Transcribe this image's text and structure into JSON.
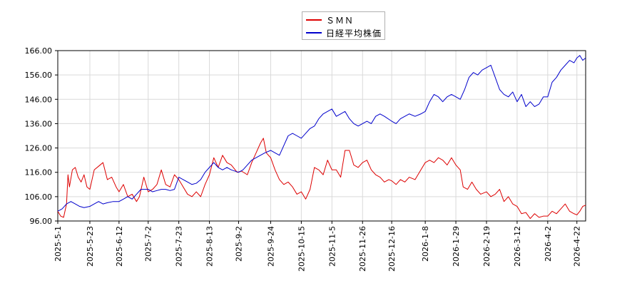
{
  "chart_data": {
    "type": "line",
    "title": "",
    "xlabel": "",
    "ylabel": "",
    "ylim": [
      96,
      166
    ],
    "yticks": [
      "96.00",
      "106.00",
      "116.00",
      "126.00",
      "136.00",
      "146.00",
      "156.00",
      "166.00"
    ],
    "xticks": [
      "2025-5-1",
      "2025-5-23",
      "2025-6-12",
      "2025-7-2",
      "2025-7-23",
      "2025-8-13",
      "2025-9-2",
      "2025-9-24",
      "2025-10-15",
      "2025-11-5",
      "2025-11-26",
      "2025-12-16",
      "2026-1-8",
      "2026-1-29",
      "2026-2-19",
      "2026-3-12",
      "2026-4-2",
      "2026-4-22"
    ],
    "grid": true,
    "legend_position": "top-center",
    "series": [
      {
        "name": "ＳＭＮ",
        "color": "#dd0000",
        "values": [
          [
            "2025-5-1",
            100.0
          ],
          [
            "2025-5-3",
            98.0
          ],
          [
            "2025-5-5",
            97.5
          ],
          [
            "2025-5-7",
            103.0
          ],
          [
            "2025-5-8",
            115.0
          ],
          [
            "2025-5-9",
            110.0
          ],
          [
            "2025-5-11",
            117.0
          ],
          [
            "2025-5-13",
            118.0
          ],
          [
            "2025-5-15",
            114.0
          ],
          [
            "2025-5-17",
            112.0
          ],
          [
            "2025-5-19",
            115.0
          ],
          [
            "2025-5-21",
            110.0
          ],
          [
            "2025-5-23",
            109.0
          ],
          [
            "2025-5-26",
            117.0
          ],
          [
            "2025-5-29",
            118.5
          ],
          [
            "2025-6-1",
            120.0
          ],
          [
            "2025-6-4",
            113.0
          ],
          [
            "2025-6-7",
            114.0
          ],
          [
            "2025-6-10",
            110.0
          ],
          [
            "2025-6-12",
            108.0
          ],
          [
            "2025-6-15",
            111.0
          ],
          [
            "2025-6-18",
            106.0
          ],
          [
            "2025-6-21",
            107.0
          ],
          [
            "2025-6-24",
            104.0
          ],
          [
            "2025-6-26",
            106.0
          ],
          [
            "2025-6-29",
            114.0
          ],
          [
            "2025-7-2",
            108.0
          ],
          [
            "2025-7-5",
            109.0
          ],
          [
            "2025-7-8",
            111.0
          ],
          [
            "2025-7-11",
            117.0
          ],
          [
            "2025-7-14",
            111.0
          ],
          [
            "2025-7-17",
            110.0
          ],
          [
            "2025-7-20",
            115.0
          ],
          [
            "2025-7-23",
            113.0
          ],
          [
            "2025-7-26",
            110.0
          ],
          [
            "2025-7-29",
            107.0
          ],
          [
            "2025-8-1",
            106.0
          ],
          [
            "2025-8-4",
            108.0
          ],
          [
            "2025-8-7",
            106.0
          ],
          [
            "2025-8-10",
            111.0
          ],
          [
            "2025-8-13",
            115.0
          ],
          [
            "2025-8-16",
            122.0
          ],
          [
            "2025-8-19",
            118.0
          ],
          [
            "2025-8-22",
            123.0
          ],
          [
            "2025-8-25",
            120.0
          ],
          [
            "2025-8-28",
            119.0
          ],
          [
            "2025-9-1",
            116.0
          ],
          [
            "2025-9-4",
            116.5
          ],
          [
            "2025-9-8",
            115.0
          ],
          [
            "2025-9-11",
            120.0
          ],
          [
            "2025-9-14",
            124.0
          ],
          [
            "2025-9-17",
            128.0
          ],
          [
            "2025-9-19",
            130.0
          ],
          [
            "2025-9-21",
            124.0
          ],
          [
            "2025-9-24",
            122.0
          ],
          [
            "2025-9-27",
            117.0
          ],
          [
            "2025-9-30",
            113.0
          ],
          [
            "2025-10-3",
            111.0
          ],
          [
            "2025-10-6",
            112.0
          ],
          [
            "2025-10-9",
            110.0
          ],
          [
            "2025-10-12",
            107.0
          ],
          [
            "2025-10-15",
            108.0
          ],
          [
            "2025-10-18",
            105.0
          ],
          [
            "2025-10-21",
            109.0
          ],
          [
            "2025-10-24",
            118.0
          ],
          [
            "2025-10-27",
            117.0
          ],
          [
            "2025-10-30",
            115.0
          ],
          [
            "2025-11-2",
            121.0
          ],
          [
            "2025-11-5",
            117.0
          ],
          [
            "2025-11-8",
            117.0
          ],
          [
            "2025-11-11",
            114.0
          ],
          [
            "2025-11-14",
            125.0
          ],
          [
            "2025-11-17",
            125.0
          ],
          [
            "2025-11-20",
            119.0
          ],
          [
            "2025-11-23",
            118.0
          ],
          [
            "2025-11-26",
            120.0
          ],
          [
            "2025-11-29",
            121.0
          ],
          [
            "2025-12-2",
            117.0
          ],
          [
            "2025-12-5",
            115.0
          ],
          [
            "2025-12-8",
            114.0
          ],
          [
            "2025-12-11",
            112.0
          ],
          [
            "2025-12-14",
            113.0
          ],
          [
            "2025-12-16",
            112.5
          ],
          [
            "2025-12-19",
            111.0
          ],
          [
            "2025-12-22",
            113.0
          ],
          [
            "2025-12-25",
            112.0
          ],
          [
            "2025-12-28",
            114.0
          ],
          [
            "2026-1-1",
            113.0
          ],
          [
            "2026-1-5",
            117.0
          ],
          [
            "2026-1-8",
            120.0
          ],
          [
            "2026-1-11",
            121.0
          ],
          [
            "2026-1-14",
            120.0
          ],
          [
            "2026-1-17",
            122.0
          ],
          [
            "2026-1-20",
            121.0
          ],
          [
            "2026-1-23",
            119.0
          ],
          [
            "2026-1-26",
            122.0
          ],
          [
            "2026-1-29",
            119.0
          ],
          [
            "2026-2-1",
            117.0
          ],
          [
            "2026-2-3",
            110.0
          ],
          [
            "2026-2-6",
            109.0
          ],
          [
            "2026-2-9",
            112.0
          ],
          [
            "2026-2-12",
            109.0
          ],
          [
            "2026-2-15",
            107.0
          ],
          [
            "2026-2-19",
            108.0
          ],
          [
            "2026-2-22",
            106.0
          ],
          [
            "2026-2-25",
            107.0
          ],
          [
            "2026-2-28",
            109.0
          ],
          [
            "2026-3-3",
            104.0
          ],
          [
            "2026-3-6",
            106.0
          ],
          [
            "2026-3-9",
            103.0
          ],
          [
            "2026-3-12",
            102.0
          ],
          [
            "2026-3-15",
            99.0
          ],
          [
            "2026-3-18",
            99.5
          ],
          [
            "2026-3-21",
            97.0
          ],
          [
            "2026-3-24",
            99.0
          ],
          [
            "2026-3-27",
            97.5
          ],
          [
            "2026-3-30",
            98.0
          ],
          [
            "2026-4-2",
            98.0
          ],
          [
            "2026-4-5",
            100.0
          ],
          [
            "2026-4-8",
            99.0
          ],
          [
            "2026-4-11",
            101.0
          ],
          [
            "2026-4-14",
            103.0
          ],
          [
            "2026-4-17",
            100.0
          ],
          [
            "2026-4-20",
            99.0
          ],
          [
            "2026-4-22",
            98.5
          ],
          [
            "2026-4-24",
            100.0
          ],
          [
            "2026-4-26",
            102.0
          ],
          [
            "2026-4-28",
            102.5
          ]
        ]
      },
      {
        "name": "日経平均株価",
        "color": "#0000cc",
        "values": [
          [
            "2025-5-1",
            100.0
          ],
          [
            "2025-5-4",
            101.0
          ],
          [
            "2025-5-7",
            103.0
          ],
          [
            "2025-5-10",
            104.0
          ],
          [
            "2025-5-13",
            103.0
          ],
          [
            "2025-5-16",
            102.0
          ],
          [
            "2025-5-19",
            101.5
          ],
          [
            "2025-5-23",
            102.0
          ],
          [
            "2025-5-26",
            103.0
          ],
          [
            "2025-5-29",
            104.0
          ],
          [
            "2025-6-1",
            103.0
          ],
          [
            "2025-6-4",
            103.5
          ],
          [
            "2025-6-8",
            104.0
          ],
          [
            "2025-6-12",
            104.0
          ],
          [
            "2025-6-15",
            105.0
          ],
          [
            "2025-6-18",
            106.0
          ],
          [
            "2025-6-21",
            105.0
          ],
          [
            "2025-6-24",
            107.0
          ],
          [
            "2025-6-27",
            109.0
          ],
          [
            "2025-7-2",
            109.0
          ],
          [
            "2025-7-5",
            108.0
          ],
          [
            "2025-7-8",
            108.5
          ],
          [
            "2025-7-11",
            109.0
          ],
          [
            "2025-7-14",
            109.0
          ],
          [
            "2025-7-17",
            108.5
          ],
          [
            "2025-7-20",
            109.0
          ],
          [
            "2025-7-23",
            114.0
          ],
          [
            "2025-7-26",
            113.0
          ],
          [
            "2025-7-29",
            112.0
          ],
          [
            "2025-8-1",
            111.0
          ],
          [
            "2025-8-4",
            111.5
          ],
          [
            "2025-8-7",
            113.0
          ],
          [
            "2025-8-10",
            116.0
          ],
          [
            "2025-8-13",
            118.0
          ],
          [
            "2025-8-16",
            120.0
          ],
          [
            "2025-8-19",
            118.0
          ],
          [
            "2025-8-22",
            117.0
          ],
          [
            "2025-8-25",
            118.0
          ],
          [
            "2025-8-28",
            117.0
          ],
          [
            "2025-9-2",
            116.0
          ],
          [
            "2025-9-5",
            117.0
          ],
          [
            "2025-9-8",
            119.0
          ],
          [
            "2025-9-11",
            121.0
          ],
          [
            "2025-9-14",
            122.0
          ],
          [
            "2025-9-17",
            123.0
          ],
          [
            "2025-9-20",
            124.0
          ],
          [
            "2025-9-24",
            125.0
          ],
          [
            "2025-9-27",
            124.0
          ],
          [
            "2025-9-30",
            123.0
          ],
          [
            "2025-10-3",
            127.0
          ],
          [
            "2025-10-6",
            131.0
          ],
          [
            "2025-10-9",
            132.0
          ],
          [
            "2025-10-12",
            131.0
          ],
          [
            "2025-10-15",
            130.0
          ],
          [
            "2025-10-18",
            132.0
          ],
          [
            "2025-10-21",
            134.0
          ],
          [
            "2025-10-24",
            135.0
          ],
          [
            "2025-10-27",
            138.0
          ],
          [
            "2025-10-30",
            140.0
          ],
          [
            "2025-11-2",
            141.0
          ],
          [
            "2025-11-5",
            142.0
          ],
          [
            "2025-11-8",
            139.0
          ],
          [
            "2025-11-11",
            140.0
          ],
          [
            "2025-11-14",
            141.0
          ],
          [
            "2025-11-17",
            138.0
          ],
          [
            "2025-11-20",
            136.0
          ],
          [
            "2025-11-23",
            135.0
          ],
          [
            "2025-11-26",
            136.0
          ],
          [
            "2025-11-29",
            137.0
          ],
          [
            "2025-12-2",
            136.0
          ],
          [
            "2025-12-5",
            139.0
          ],
          [
            "2025-12-8",
            140.0
          ],
          [
            "2025-12-11",
            139.0
          ],
          [
            "2025-12-16",
            137.0
          ],
          [
            "2025-12-19",
            136.0
          ],
          [
            "2025-12-22",
            138.0
          ],
          [
            "2025-12-25",
            139.0
          ],
          [
            "2025-12-28",
            140.0
          ],
          [
            "2026-1-1",
            139.0
          ],
          [
            "2026-1-5",
            140.0
          ],
          [
            "2026-1-8",
            141.0
          ],
          [
            "2026-1-11",
            145.0
          ],
          [
            "2026-1-14",
            148.0
          ],
          [
            "2026-1-17",
            147.0
          ],
          [
            "2026-1-20",
            145.0
          ],
          [
            "2026-1-23",
            147.0
          ],
          [
            "2026-1-26",
            148.0
          ],
          [
            "2026-1-29",
            147.0
          ],
          [
            "2026-2-1",
            146.0
          ],
          [
            "2026-2-4",
            150.0
          ],
          [
            "2026-2-7",
            155.0
          ],
          [
            "2026-2-10",
            157.0
          ],
          [
            "2026-2-13",
            156.0
          ],
          [
            "2026-2-16",
            158.0
          ],
          [
            "2026-2-19",
            159.0
          ],
          [
            "2026-2-22",
            160.0
          ],
          [
            "2026-2-25",
            155.0
          ],
          [
            "2026-2-28",
            150.0
          ],
          [
            "2026-3-3",
            148.0
          ],
          [
            "2026-3-6",
            147.0
          ],
          [
            "2026-3-9",
            149.0
          ],
          [
            "2026-3-12",
            145.0
          ],
          [
            "2026-3-15",
            148.0
          ],
          [
            "2026-3-18",
            143.0
          ],
          [
            "2026-3-21",
            145.0
          ],
          [
            "2026-3-24",
            143.0
          ],
          [
            "2026-3-27",
            144.0
          ],
          [
            "2026-3-30",
            147.0
          ],
          [
            "2026-4-2",
            147.0
          ],
          [
            "2026-4-5",
            153.0
          ],
          [
            "2026-4-8",
            155.0
          ],
          [
            "2026-4-11",
            158.0
          ],
          [
            "2026-4-14",
            160.0
          ],
          [
            "2026-4-17",
            162.0
          ],
          [
            "2026-4-20",
            161.0
          ],
          [
            "2026-4-22",
            163.0
          ],
          [
            "2026-4-24",
            164.0
          ],
          [
            "2026-4-26",
            162.0
          ],
          [
            "2026-4-28",
            163.0
          ]
        ]
      }
    ]
  }
}
